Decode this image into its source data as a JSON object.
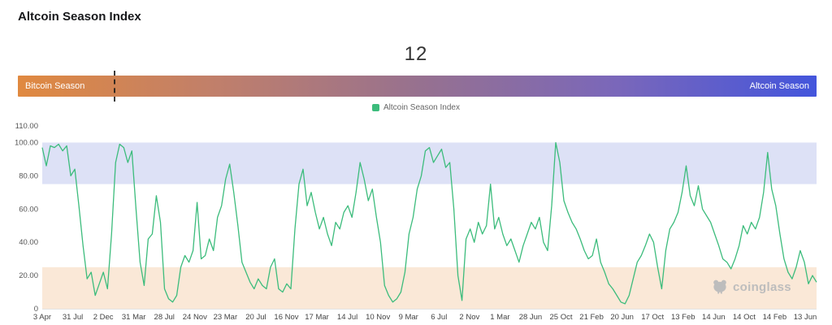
{
  "page": {
    "title": "Altcoin Season Index"
  },
  "gauge": {
    "value": "12",
    "left_label": "Bitcoin Season",
    "right_label": "Altcoin Season",
    "marker_percent": 12,
    "gradient_stops": [
      "#E08940 0%",
      "#C07F6B 25%",
      "#97718F 50%",
      "#7A67BA 75%",
      "#4355DC 100%"
    ]
  },
  "legend": {
    "label": "Altcoin Season Index",
    "color": "#3CBC7C"
  },
  "watermark": {
    "label": "coinglass"
  },
  "chart_data": {
    "type": "line",
    "title": "Altcoin Season Index",
    "xlabel": "",
    "ylabel": "",
    "ylim": [
      0,
      110
    ],
    "grid": false,
    "legend_position": "top-center",
    "line_color": "#3CBC7C",
    "axis_text_color": "#555555",
    "baseline_color": "#e3e3e3",
    "bands": [
      {
        "from": 75,
        "to": 100,
        "color": "#DDE1F6",
        "meaning": "Altcoin Season zone"
      },
      {
        "from": 0,
        "to": 25,
        "color": "#FAE8D7",
        "meaning": "Bitcoin Season zone"
      }
    ],
    "y_tick_values": [
      110,
      100,
      80,
      60,
      40,
      20,
      0
    ],
    "y_tick_labels": [
      "110.00",
      "100.00",
      "80.00",
      "60.00",
      "40.00",
      "20.00",
      "0"
    ],
    "x_tick_labels": [
      "3 Apr",
      "31 Jul",
      "2 Dec",
      "31 Mar",
      "28 Jul",
      "24 Nov",
      "23 Mar",
      "20 Jul",
      "16 Nov",
      "17 Mar",
      "14 Jul",
      "10 Nov",
      "9 Mar",
      "6 Jul",
      "2 Nov",
      "1 Mar",
      "28 Jun",
      "25 Oct",
      "21 Feb",
      "20 Jun",
      "17 Oct",
      "13 Feb",
      "14 Jun",
      "14 Oct",
      "14 Feb",
      "13 Jun"
    ],
    "series": [
      {
        "name": "Altcoin Season Index",
        "values": [
          97,
          86,
          98,
          97,
          99,
          95,
          98,
          80,
          84,
          62,
          38,
          18,
          22,
          8,
          15,
          22,
          12,
          45,
          88,
          99,
          97,
          88,
          95,
          60,
          28,
          14,
          42,
          45,
          68,
          52,
          12,
          6,
          4,
          8,
          25,
          32,
          28,
          35,
          64,
          30,
          32,
          42,
          35,
          55,
          62,
          78,
          87,
          70,
          50,
          28,
          22,
          16,
          12,
          18,
          14,
          12,
          25,
          30,
          12,
          10,
          15,
          12,
          48,
          75,
          84,
          62,
          70,
          58,
          48,
          55,
          45,
          38,
          52,
          48,
          58,
          62,
          55,
          70,
          88,
          78,
          65,
          72,
          55,
          40,
          14,
          8,
          4,
          6,
          10,
          22,
          45,
          55,
          72,
          80,
          95,
          97,
          88,
          92,
          96,
          85,
          88,
          60,
          20,
          5,
          42,
          48,
          40,
          52,
          45,
          50,
          75,
          48,
          55,
          45,
          38,
          42,
          35,
          28,
          38,
          45,
          52,
          48,
          55,
          40,
          35,
          62,
          100,
          88,
          65,
          58,
          52,
          48,
          42,
          35,
          30,
          32,
          42,
          28,
          22,
          15,
          12,
          8,
          4,
          3,
          8,
          18,
          28,
          32,
          38,
          45,
          40,
          25,
          12,
          35,
          48,
          52,
          58,
          70,
          86,
          68,
          62,
          74,
          60,
          56,
          52,
          45,
          38,
          30,
          28,
          24,
          30,
          38,
          50,
          45,
          52,
          48,
          55,
          70,
          94,
          72,
          62,
          45,
          30,
          22,
          18,
          25,
          35,
          28,
          15,
          20,
          16
        ]
      }
    ]
  }
}
